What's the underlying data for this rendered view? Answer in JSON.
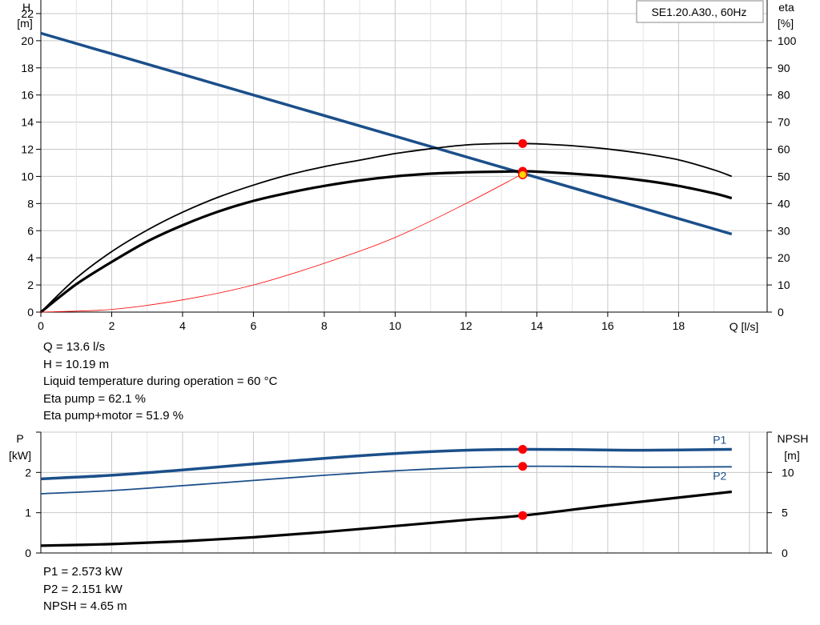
{
  "chart_data": [
    {
      "type": "line",
      "title": "SE1.20.A30., 60Hz",
      "xlabel": "Q [l/s]",
      "ylabel": "H",
      "ylabel_unit": "[m]",
      "y2label": "eta",
      "y2label_unit": "[%]",
      "xlim": [
        0,
        20.5
      ],
      "ylim": [
        0,
        23
      ],
      "y2lim": [
        0,
        115
      ],
      "xticks": [
        0,
        2,
        4,
        6,
        8,
        10,
        12,
        14,
        16,
        18
      ],
      "yticks": [
        0,
        2,
        4,
        6,
        8,
        10,
        12,
        14,
        16,
        18,
        20,
        22
      ],
      "y2ticks": [
        0,
        10,
        20,
        30,
        40,
        50,
        60,
        70,
        80,
        90,
        100
      ],
      "grid": true,
      "series": [
        {
          "axis": "left",
          "color": "#1b4f8a",
          "width": 3.5,
          "x": [
            0,
            19.5
          ],
          "y": [
            20.55,
            5.75
          ]
        },
        {
          "axis": "right",
          "color": "#000000",
          "width": 1.8,
          "x": [
            0,
            1,
            2,
            3,
            4,
            5,
            6,
            7,
            8,
            9,
            10,
            11,
            12,
            13,
            13.6,
            14,
            15,
            16,
            17,
            18,
            19,
            19.5
          ],
          "y": [
            0,
            12.5,
            22.3,
            30.2,
            36.8,
            42.3,
            46.8,
            50.6,
            53.6,
            56.0,
            58.4,
            60.2,
            61.6,
            62.1,
            62.1,
            62.0,
            61.3,
            60.1,
            58.4,
            56.1,
            52.4,
            50.0
          ]
        },
        {
          "axis": "left",
          "color": "#000000",
          "width": 3.2,
          "x": [
            0,
            1,
            2,
            3,
            4,
            5,
            6,
            7,
            8,
            9,
            10,
            11,
            12,
            13,
            13.6,
            14,
            15,
            16,
            17,
            18,
            19,
            19.5
          ],
          "y": [
            0,
            2.05,
            3.7,
            5.2,
            6.4,
            7.4,
            8.2,
            8.8,
            9.3,
            9.7,
            10.0,
            10.2,
            10.3,
            10.35,
            10.38,
            10.35,
            10.2,
            10.0,
            9.7,
            9.3,
            8.75,
            8.4
          ]
        },
        {
          "axis": "left",
          "color": "#ff0000",
          "width": 0.8,
          "x": [
            0,
            2,
            4,
            6,
            8,
            10,
            12,
            13.6
          ],
          "y": [
            0,
            0.2,
            0.9,
            2.0,
            3.6,
            5.5,
            8.0,
            10.19
          ]
        }
      ],
      "markers": [
        {
          "axis": "right",
          "x": 13.6,
          "y": 62.1
        },
        {
          "axis": "left",
          "x": 13.6,
          "y": 10.38
        },
        {
          "axis": "left",
          "x": 13.6,
          "y": 10.19,
          "duty": true
        }
      ],
      "legend_box": "top-right"
    },
    {
      "type": "line",
      "ylabel": "P",
      "ylabel_unit": "[kW]",
      "y2label": "NPSH",
      "y2label_unit": "[m]",
      "xlim": [
        0,
        20.5
      ],
      "ylim": [
        0,
        3
      ],
      "y2lim": [
        0,
        15
      ],
      "yticks": [
        0,
        1,
        2
      ],
      "y2ticks": [
        0,
        5,
        10
      ],
      "grid": true,
      "series": [
        {
          "name": "P1",
          "axis": "left",
          "color": "#1b4f8a",
          "width": 3.5,
          "x": [
            0,
            2,
            4,
            6,
            8,
            10,
            12,
            13.6,
            15,
            17,
            19.5
          ],
          "y": [
            1.84,
            1.93,
            2.06,
            2.21,
            2.35,
            2.47,
            2.55,
            2.573,
            2.566,
            2.551,
            2.573
          ]
        },
        {
          "name": "P2",
          "axis": "left",
          "color": "#1b4f8a",
          "width": 1.8,
          "x": [
            0,
            2,
            4,
            6,
            8,
            10,
            12,
            13.6,
            15,
            17,
            19.5
          ],
          "y": [
            1.47,
            1.55,
            1.67,
            1.8,
            1.93,
            2.04,
            2.12,
            2.151,
            2.15,
            2.13,
            2.14
          ]
        },
        {
          "axis": "right",
          "color": "#000000",
          "width": 3.2,
          "x": [
            0,
            2,
            4,
            6,
            8,
            10,
            12,
            13.6,
            16,
            19.5
          ],
          "y": [
            0.9,
            1.1,
            1.45,
            1.95,
            2.6,
            3.35,
            4.1,
            4.65,
            5.9,
            7.6
          ]
        }
      ],
      "markers": [
        {
          "axis": "left",
          "x": 13.6,
          "y": 2.573
        },
        {
          "axis": "left",
          "x": 13.6,
          "y": 2.151
        },
        {
          "axis": "right",
          "x": 13.6,
          "y": 4.65
        }
      ]
    }
  ],
  "duty_point": {
    "q": "Q = 13.6 l/s",
    "h": "H = 10.19 m",
    "temp": "Liquid temperature during operation = 60 °C",
    "eta_pump": "Eta pump = 62.1 %",
    "eta_total": "Eta pump+motor = 51.9 %"
  },
  "power_point": {
    "p1": "P1 = 2.573 kW",
    "p2": "P2 = 2.151 kW",
    "npsh": "NPSH = 4.65 m"
  },
  "colors": {
    "blue": "#1b4f8a",
    "marker": "#ff0000",
    "duty_fill": "#ffd700",
    "grid": "#c8c8c8"
  }
}
